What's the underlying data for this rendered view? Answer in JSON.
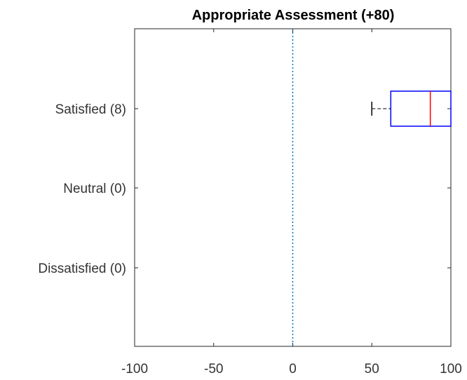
{
  "chart_data": {
    "type": "boxplot",
    "orientation": "horizontal",
    "title": "Appropriate Assessment (+80)",
    "xlabel": "",
    "ylabel": "",
    "xlim": [
      -100,
      100
    ],
    "x_ticks": [
      "-100",
      "-50",
      "0",
      "50",
      "100"
    ],
    "x_tick_values": [
      -100,
      -50,
      0,
      50,
      100
    ],
    "categories": [
      "Satisfied (8)",
      "Neutral (0)",
      "Dissatisfied (0)"
    ],
    "boxes": [
      {
        "category": "Satisfied (8)",
        "whisker_low": 50,
        "q1": 62,
        "median": 87,
        "q3": 100,
        "whisker_high": 100
      }
    ],
    "reference_line": {
      "x": 0,
      "style": "dotted"
    },
    "grid": false,
    "colors": {
      "box": "#0000ff",
      "median": "#ff0000",
      "whisker": "#000000",
      "reference": "#0072bd",
      "axes": "#262626"
    }
  }
}
